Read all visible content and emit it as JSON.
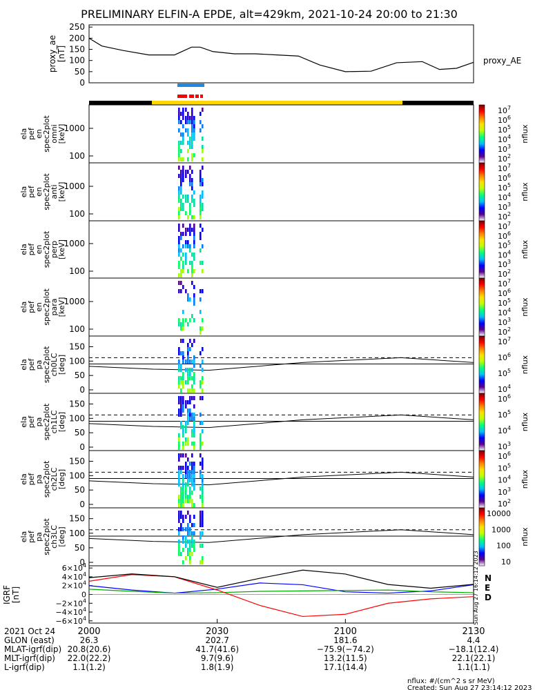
{
  "title": "PRELIMINARY ELFIN-A EPDE, alt=429km, 2021-10-24 20:00 to 21:30",
  "created": "Created: Sun Aug 27 23:14:12 2023",
  "units_note": "nflux: #/(cm^2 s sr MeV)",
  "side_stamp": "Sun Aug 27 16:14:12 2023",
  "ae_panel": {
    "ylabel": [
      "proxy_ae",
      "[nT]"
    ],
    "ticks": [
      "250",
      "200",
      "150",
      "100",
      "50",
      "0"
    ],
    "legend": "proxy_AE"
  },
  "energy_panels": [
    {
      "ylabel": [
        "ela",
        "pef",
        "en",
        "spec2plot",
        "omni",
        "[keV]"
      ],
      "ticks": [
        "1000",
        "100"
      ],
      "bar_label": "nflux",
      "bar_ticks": [
        "10^7",
        "10^6",
        "10^5",
        "10^4",
        "10^3",
        "10^2"
      ]
    },
    {
      "ylabel": [
        "ela",
        "pef",
        "en",
        "spec2plot",
        "anti",
        "[keV]"
      ],
      "ticks": [
        "1000",
        "100"
      ],
      "bar_label": "nflux",
      "bar_ticks": [
        "10^7",
        "10^6",
        "10^5",
        "10^4",
        "10^3",
        "10^2"
      ]
    },
    {
      "ylabel": [
        "ela",
        "pef",
        "en",
        "spec2plot",
        "perp",
        "[keV]"
      ],
      "ticks": [
        "1000",
        "100"
      ],
      "bar_label": "nflux",
      "bar_ticks": [
        "10^7",
        "10^6",
        "10^5",
        "10^4",
        "10^3",
        "10^2"
      ]
    },
    {
      "ylabel": [
        "ela",
        "pef",
        "en",
        "spec2plot",
        "para",
        "[keV]"
      ],
      "ticks": [
        "1000",
        "100"
      ],
      "bar_label": "nflux",
      "bar_ticks": [
        "10^7",
        "10^6",
        "10^5",
        "10^4",
        "10^3",
        "10^2"
      ]
    }
  ],
  "pa_panels": [
    {
      "ylabel": [
        "ela",
        "pef",
        "pa",
        "spec2plot",
        "ch0LC",
        "[deg]"
      ],
      "ticks": [
        "150",
        "100",
        "50",
        "0"
      ],
      "bar_label": "nflux",
      "bar_ticks": [
        "10^7",
        "10^6",
        "10^5",
        "10^4"
      ]
    },
    {
      "ylabel": [
        "ela",
        "pef",
        "pa",
        "spec2plot",
        "ch1LC",
        "[deg]"
      ],
      "ticks": [
        "150",
        "100",
        "50",
        "0"
      ],
      "bar_label": "nflux",
      "bar_ticks": [
        "10^6",
        "10^5",
        "10^4",
        "10^3"
      ]
    },
    {
      "ylabel": [
        "ela",
        "pef",
        "pa",
        "spec2plot",
        "ch2LC",
        "[deg]"
      ],
      "ticks": [
        "150",
        "100",
        "50",
        "0"
      ],
      "bar_label": "nflux",
      "bar_ticks": [
        "10^6",
        "10^5",
        "10^4",
        "10^3",
        "10^2"
      ]
    },
    {
      "ylabel": [
        "ela",
        "pef",
        "pa",
        "spec2plot",
        "ch3LC",
        "[deg]"
      ],
      "ticks": [
        "150",
        "100",
        "50",
        "0"
      ],
      "bar_label": "nflux",
      "bar_ticks": [
        "10000",
        "1000",
        "100",
        "10"
      ]
    }
  ],
  "igrf_panel": {
    "ylabel": [
      "IGRF",
      "[nT]"
    ],
    "ticks": [
      "6×10^4",
      "4×10^4",
      "2×10^4",
      "0",
      "−2×10^4",
      "−4×10^4",
      "−6×10^4"
    ],
    "legend": [
      {
        "label": "N",
        "color": "#0000ff"
      },
      {
        "label": "E",
        "color": "#00aa00"
      },
      {
        "label": "D",
        "color": "#ff0000"
      }
    ]
  },
  "x_axis": {
    "tick_labels": [
      "2000",
      "2030",
      "2100",
      "2130"
    ]
  },
  "ephemeris": {
    "rows": [
      {
        "label": "2021 Oct 24",
        "values": [
          "2000",
          "",
          "",
          ""
        ]
      },
      {
        "label": "GLON (east)",
        "values": [
          "26.3",
          "202.7",
          "181.6",
          "4.4"
        ]
      },
      {
        "label": "MLAT-igrf(dip)",
        "values": [
          "20.8(20.6)",
          "41.7(41.6)",
          "−75.9(−74.2)",
          "−18.1(12.4)"
        ]
      },
      {
        "label": "MLT-igrf(dip)",
        "values": [
          "22.0(22.2)",
          "9.7(9.6)",
          "13.2(11.5)",
          "22.1(22.1)"
        ]
      },
      {
        "label": "L-igrf(dip)",
        "values": [
          "1.1(1.2)",
          "1.8(1.9)",
          "17.1(14.4)",
          "1.1(1.1)"
        ]
      }
    ]
  },
  "colors": {
    "ae_line": "#000000",
    "bar_blue": "#1e88e5",
    "bar_red": "#ff0000",
    "bar_black": "#000000",
    "bar_yellow": "#ffd700",
    "igrf_total": "#000000"
  },
  "chart_data": {
    "type": "line",
    "x_range_minutes": [
      0,
      90
    ],
    "series": [
      {
        "name": "proxy_AE",
        "units": "nT",
        "ylim": [
          0,
          260
        ],
        "x": [
          0,
          3,
          8,
          14,
          20,
          24,
          26,
          29,
          34,
          39,
          44,
          49,
          54,
          60,
          66,
          72,
          78,
          82,
          86,
          90
        ],
        "y": [
          200,
          165,
          145,
          125,
          125,
          160,
          160,
          140,
          130,
          130,
          125,
          120,
          80,
          50,
          52,
          90,
          95,
          60,
          65,
          92
        ]
      },
      {
        "name": "N",
        "units": "nT",
        "ylim": [
          -65000,
          65000
        ],
        "x": [
          0,
          10,
          20,
          30,
          40,
          50,
          60,
          70,
          80,
          90
        ],
        "y": [
          20000,
          10000,
          3000,
          12000,
          26000,
          22000,
          6000,
          3000,
          8000,
          22000
        ]
      },
      {
        "name": "E",
        "units": "nT",
        "ylim": [
          -65000,
          65000
        ],
        "x": [
          0,
          10,
          20,
          30,
          40,
          50,
          60,
          70,
          80,
          90
        ],
        "y": [
          12000,
          7000,
          3000,
          4000,
          7000,
          8000,
          9000,
          10000,
          6000,
          4000
        ]
      },
      {
        "name": "D",
        "units": "nT",
        "ylim": [
          -65000,
          65000
        ],
        "x": [
          0,
          10,
          20,
          30,
          40,
          50,
          60,
          70,
          80,
          90
        ],
        "y": [
          30000,
          45000,
          40000,
          10000,
          -25000,
          -50000,
          -45000,
          -20000,
          -10000,
          -5000
        ]
      }
    ]
  }
}
